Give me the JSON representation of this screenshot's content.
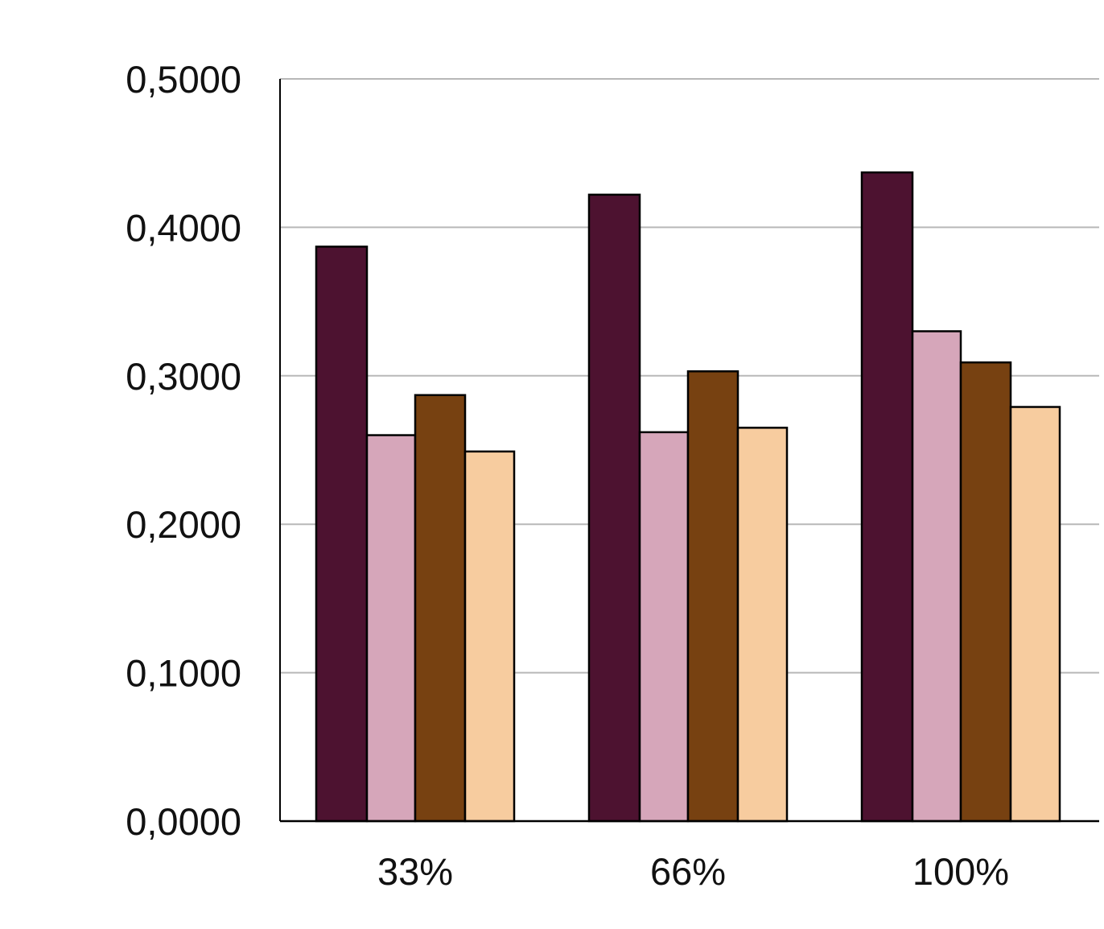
{
  "chart_data": {
    "type": "bar",
    "title": "",
    "xlabel": "",
    "ylabel": "",
    "categories": [
      "33%",
      "66%",
      "100%"
    ],
    "series": [
      {
        "values": [
          0.387,
          0.422,
          0.437
        ],
        "color": "#4d1230"
      },
      {
        "values": [
          0.26,
          0.262,
          0.33
        ],
        "color": "#d6a6ba"
      },
      {
        "values": [
          0.287,
          0.303,
          0.309
        ],
        "color": "#774111"
      },
      {
        "values": [
          0.249,
          0.265,
          0.279
        ],
        "color": "#f7cc9f"
      }
    ],
    "ylim": [
      0,
      0.5
    ],
    "yticks": [
      0,
      0.1,
      0.2,
      0.3,
      0.4,
      0.5
    ],
    "ytick_labels": [
      "0,0000",
      "0,1000",
      "0,2000",
      "0,3000",
      "0,4000",
      "0,5000"
    ],
    "grid": true,
    "legend": "none"
  }
}
